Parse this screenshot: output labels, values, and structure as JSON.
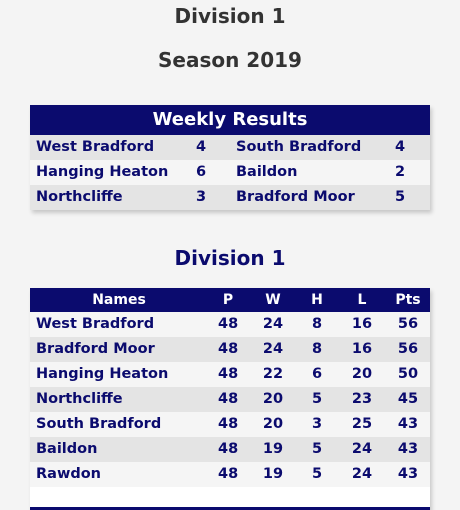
{
  "page": {
    "division": "Division 1",
    "season": "Season 2019"
  },
  "weekly": {
    "title": "Weekly Results",
    "results": [
      {
        "home": "West Bradford",
        "home_score": "4",
        "away": "South Bradford",
        "away_score": "4"
      },
      {
        "home": "Hanging Heaton",
        "home_score": "6",
        "away": "Baildon",
        "away_score": "2"
      },
      {
        "home": "Northcliffe",
        "home_score": "3",
        "away": "Bradford Moor",
        "away_score": "5"
      }
    ]
  },
  "league": {
    "title": "Division 1",
    "columns": {
      "names": "Names",
      "p": "P",
      "w": "W",
      "h": "H",
      "l": "L",
      "pts": "Pts"
    },
    "rows": [
      {
        "name": "West Bradford",
        "p": "48",
        "w": "24",
        "h": "8",
        "l": "16",
        "pts": "56"
      },
      {
        "name": "Bradford Moor",
        "p": "48",
        "w": "24",
        "h": "8",
        "l": "16",
        "pts": "56"
      },
      {
        "name": "Hanging Heaton",
        "p": "48",
        "w": "22",
        "h": "6",
        "l": "20",
        "pts": "50"
      },
      {
        "name": "Northcliffe",
        "p": "48",
        "w": "20",
        "h": "5",
        "l": "23",
        "pts": "45"
      },
      {
        "name": "South Bradford",
        "p": "48",
        "w": "20",
        "h": "3",
        "l": "25",
        "pts": "43"
      },
      {
        "name": "Baildon",
        "p": "48",
        "w": "19",
        "h": "5",
        "l": "24",
        "pts": "43"
      },
      {
        "name": "Rawdon",
        "p": "48",
        "w": "19",
        "h": "5",
        "l": "24",
        "pts": "43"
      }
    ]
  },
  "colors": {
    "header_bg": "#0b0b6e",
    "row_alt": "#e4e4e4",
    "row_light": "#f5f5f5",
    "page_bg": "#f4f4f4"
  }
}
